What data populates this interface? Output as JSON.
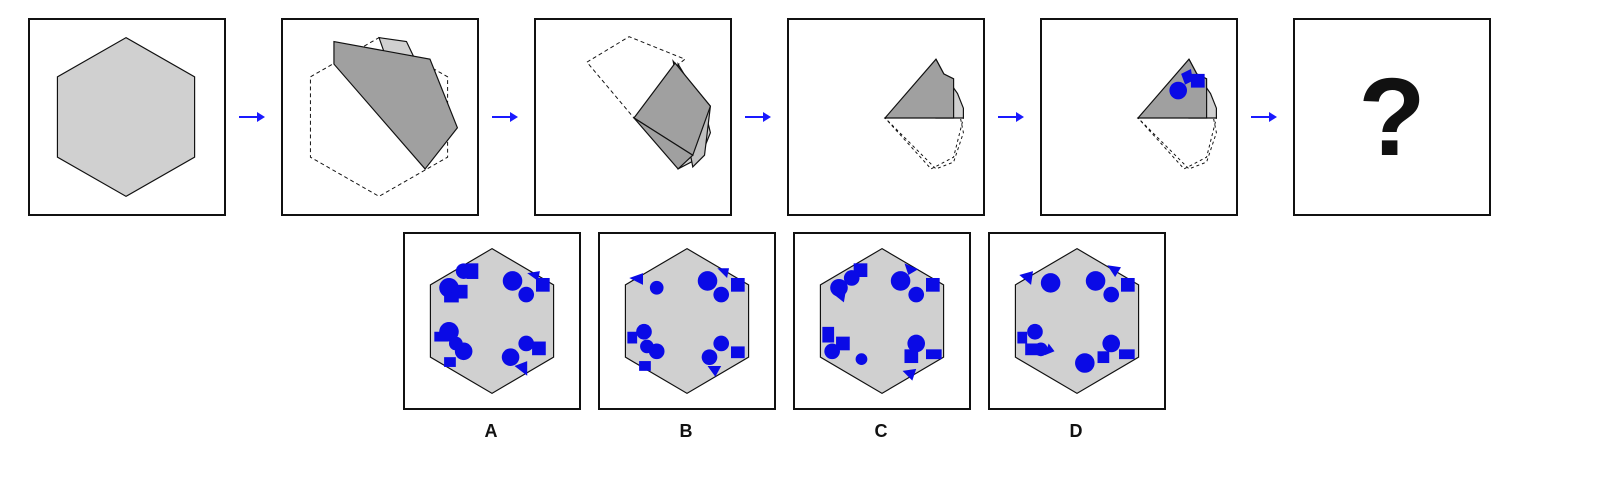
{
  "question_mark": "?",
  "options": [
    {
      "label": "A"
    },
    {
      "label": "B"
    },
    {
      "label": "C"
    },
    {
      "label": "D"
    }
  ],
  "colors": {
    "hexagon_fill": "#d0d0d0",
    "folded_fill": "#a0a0a0",
    "arrow": "#1a1aff",
    "punch": "#0a0ae6",
    "border": "#111111"
  }
}
